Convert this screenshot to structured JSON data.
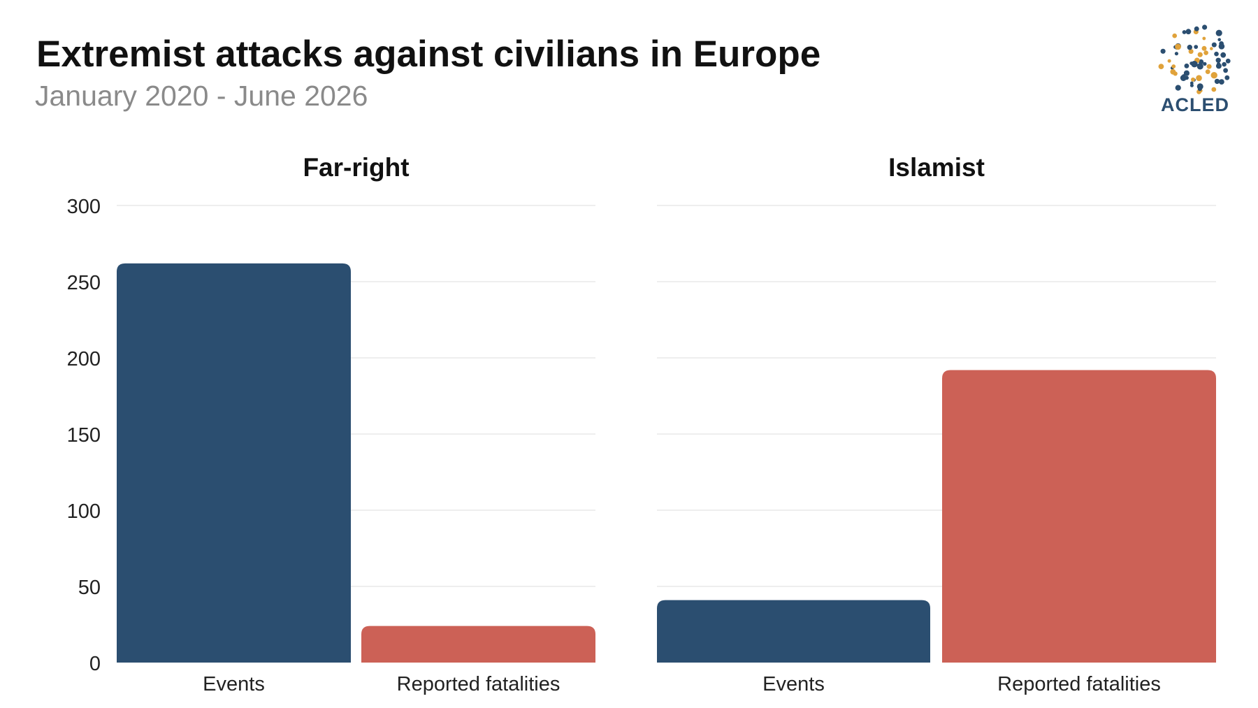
{
  "chart_data": {
    "type": "bar",
    "title": "Extremist attacks against civilians in Europe",
    "subtitle": "January 2020 - June 2026",
    "ylim": [
      0,
      300
    ],
    "yticks": [
      0,
      50,
      100,
      150,
      200,
      250,
      300
    ],
    "grid": true,
    "categories": [
      "Events",
      "Reported fatalities"
    ],
    "bar_colors": [
      "#2b4e70",
      "#cc6156"
    ],
    "panels": [
      {
        "title": "Far-right",
        "values": [
          262,
          24
        ]
      },
      {
        "title": "Islamist",
        "values": [
          41,
          192
        ]
      }
    ]
  },
  "branding": {
    "logo_text": "ACLED",
    "logo_color": "#2b4e70",
    "logo_accent_color": "#e0a23a"
  }
}
